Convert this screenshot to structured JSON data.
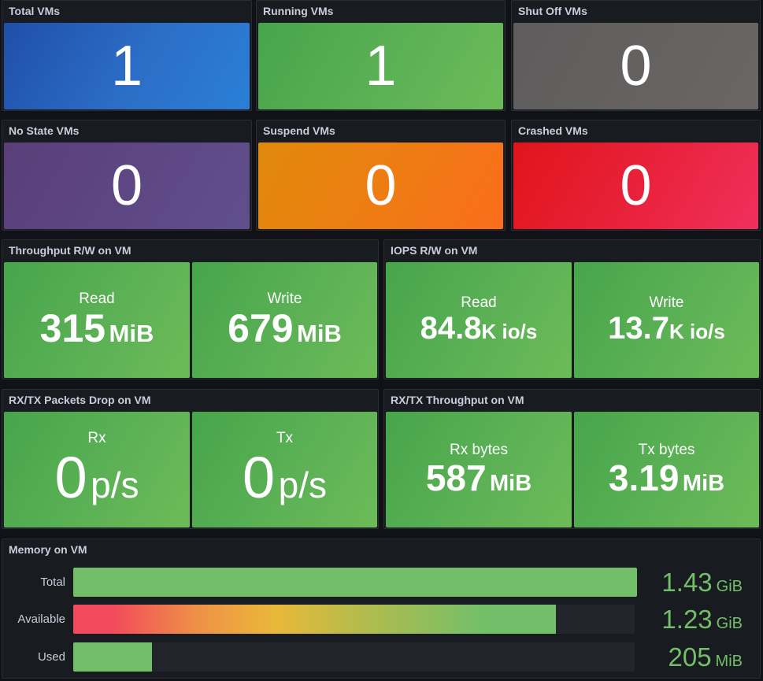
{
  "row1": [
    {
      "title": "Total VMs",
      "value": "1"
    },
    {
      "title": "Running VMs",
      "value": "1"
    },
    {
      "title": "Shut Off VMs",
      "value": "0"
    }
  ],
  "row2": [
    {
      "title": "No State VMs",
      "value": "0"
    },
    {
      "title": "Suspend VMs",
      "value": "0"
    },
    {
      "title": "Crashed VMs",
      "value": "0"
    }
  ],
  "throughput": {
    "title": "Throughput R/W on VM",
    "read": {
      "label": "Read",
      "value": "315",
      "unit": "MiB"
    },
    "write": {
      "label": "Write",
      "value": "679",
      "unit": "MiB"
    }
  },
  "iops": {
    "title": "IOPS R/W on VM",
    "read": {
      "label": "Read",
      "value": "84.8",
      "unit": "K io/s"
    },
    "write": {
      "label": "Write",
      "value": "13.7",
      "unit": "K io/s"
    }
  },
  "packets_drop": {
    "title": "RX/TX Packets Drop on VM",
    "rx": {
      "label": "Rx",
      "value": "0",
      "unit": "p/s"
    },
    "tx": {
      "label": "Tx",
      "value": "0",
      "unit": "p/s"
    }
  },
  "net_throughput": {
    "title": "RX/TX Throughput on VM",
    "rx": {
      "label": "Rx bytes",
      "value": "587",
      "unit": "MiB"
    },
    "tx": {
      "label": "Tx bytes",
      "value": "3.19",
      "unit": "MiB"
    }
  },
  "memory": {
    "title": "Memory on VM",
    "rows": [
      {
        "label": "Total",
        "value": "1.43",
        "unit": "GiB",
        "fraction": 1.0
      },
      {
        "label": "Available",
        "value": "1.23",
        "unit": "GiB",
        "fraction": 0.86
      },
      {
        "label": "Used",
        "value": "205",
        "unit": "MiB",
        "fraction": 0.14
      }
    ]
  },
  "colors": {
    "background": "#111217",
    "panel": "#181b1f",
    "green": "#73bf69",
    "blue": "#2a6fc9",
    "gray": "#656160",
    "purple": "#5d4784",
    "orange": "#f07a14",
    "red": "#ea2440"
  }
}
